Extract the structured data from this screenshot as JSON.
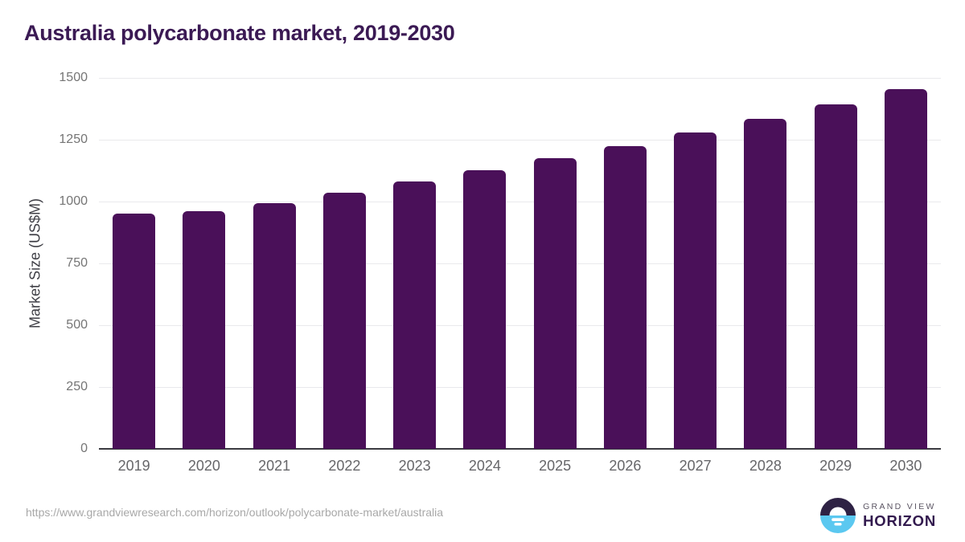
{
  "colors": {
    "bar": "#4a1059",
    "title": "#3b1a54",
    "gridline": "#e9e9ec",
    "axis_line": "#3a3a40",
    "y_tick": "#757575",
    "x_tick": "#666669",
    "url": "#a8a8a8",
    "logo_dark": "#2e2244",
    "logo_blue": "#5bc8f0"
  },
  "chart_data": {
    "type": "bar",
    "title": "Australia polycarbonate market, 2019-2030",
    "ylabel": "Market Size (US$M)",
    "xlabel": "",
    "categories": [
      "2019",
      "2020",
      "2021",
      "2022",
      "2023",
      "2024",
      "2025",
      "2026",
      "2027",
      "2028",
      "2029",
      "2030"
    ],
    "values": [
      950,
      961,
      994,
      1035,
      1082,
      1127,
      1176,
      1225,
      1280,
      1336,
      1394,
      1453
    ],
    "ylim": [
      0,
      1500
    ],
    "yticks": [
      0,
      250,
      500,
      750,
      1000,
      1250,
      1500
    ],
    "grid": "horizontal",
    "legend": "none",
    "bar_color": "#4a1059"
  },
  "footer": {
    "source_url": "https://www.grandviewresearch.com/horizon/outlook/polycarbonate-market/australia",
    "logo": {
      "line1": "GRAND VIEW",
      "line2": "HORIZON",
      "icon": "grand-view-horizon-sun-icon"
    }
  }
}
